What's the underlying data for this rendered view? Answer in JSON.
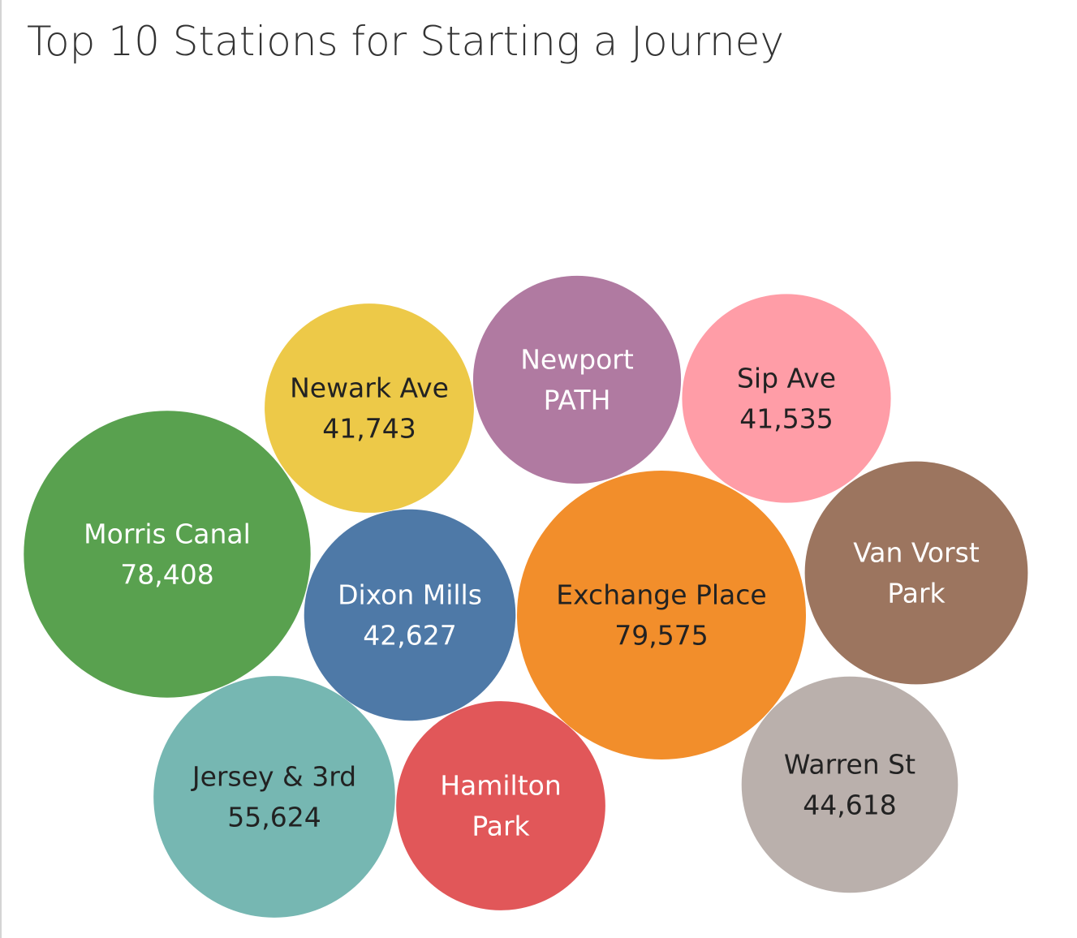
{
  "chart_data": {
    "type": "bubble",
    "title": "Top 10 Stations for Starting a Journey",
    "bubbles": [
      {
        "name": "Newark Ave",
        "value": 41743,
        "label": "41,743",
        "color": "#EDC948",
        "text_color": "#222222",
        "show_value": true
      },
      {
        "name": "Newport PATH",
        "value": 41200,
        "label": "",
        "color": "#B07AA1",
        "text_color": "#ffffff",
        "show_value": false
      },
      {
        "name": "Sip Ave",
        "value": 41535,
        "label": "41,535",
        "color": "#FF9DA7",
        "text_color": "#222222",
        "show_value": true
      },
      {
        "name": "Morris Canal",
        "value": 78408,
        "label": "78,408",
        "color": "#59A14F",
        "text_color": "#ffffff",
        "show_value": true
      },
      {
        "name": "Dixon Mills",
        "value": 42627,
        "label": "42,627",
        "color": "#4E79A7",
        "text_color": "#ffffff",
        "show_value": true
      },
      {
        "name": "Exchange Place",
        "value": 79575,
        "label": "79,575",
        "color": "#F28E2B",
        "text_color": "#222222",
        "show_value": true
      },
      {
        "name": "Van Vorst Park",
        "value": 47400,
        "label": "",
        "color": "#9C755F",
        "text_color": "#ffffff",
        "show_value": false
      },
      {
        "name": "Jersey & 3rd",
        "value": 55624,
        "label": "55,624",
        "color": "#76B7B2",
        "text_color": "#222222",
        "show_value": true
      },
      {
        "name": "Hamilton Park",
        "value": 41700,
        "label": "",
        "color": "#E15759",
        "text_color": "#ffffff",
        "show_value": false
      },
      {
        "name": "Warren St",
        "value": 44618,
        "label": "44,618",
        "color": "#BAB0AC",
        "text_color": "#222222",
        "show_value": true
      }
    ]
  }
}
